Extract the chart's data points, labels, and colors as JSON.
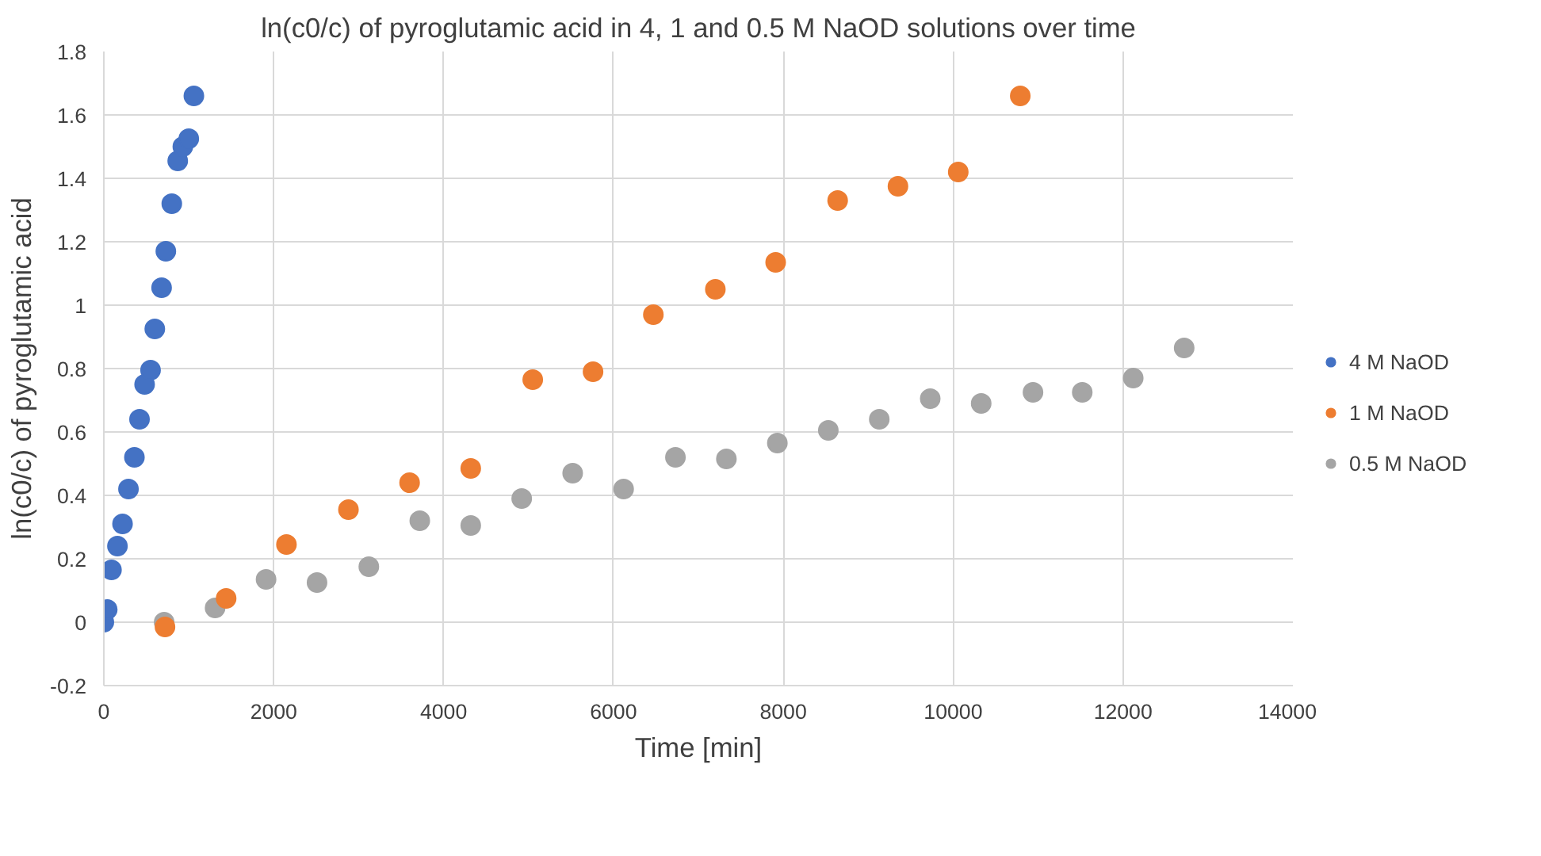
{
  "chart_data": {
    "type": "scatter",
    "title": "ln(c0/c) of pyroglutamic acid in 4, 1 and 0.5 M NaOD solutions over time",
    "xlabel": "Time [min]",
    "ylabel": "ln(c0/c) of pyroglutamic acid",
    "xlim": [
      0,
      14000
    ],
    "xticks": [
      0,
      2000,
      4000,
      6000,
      8000,
      10000,
      12000,
      14000
    ],
    "ylim": [
      -0.2,
      1.8
    ],
    "yticks": [
      -0.2,
      0,
      0.2,
      0.4,
      0.6,
      0.8,
      1,
      1.2,
      1.4,
      1.6,
      1.8
    ],
    "grid": true,
    "legend": "right",
    "marker": "circle",
    "series": [
      {
        "name": "4 M NaOD",
        "color": "#4472c4",
        "x": [
          0,
          40,
          90,
          160,
          220,
          290,
          360,
          420,
          480,
          550,
          600,
          680,
          730,
          800,
          870,
          930,
          1000,
          1060
        ],
        "values": [
          0,
          0.04,
          0.165,
          0.24,
          0.31,
          0.42,
          0.52,
          0.64,
          0.75,
          0.795,
          0.925,
          1.055,
          1.17,
          1.32,
          1.455,
          1.5,
          1.525,
          1.66
        ]
      },
      {
        "name": "1 M NaOD",
        "color": "#ed7d31",
        "x": [
          720,
          1440,
          2150,
          2880,
          3600,
          4320,
          5050,
          5760,
          6470,
          7200,
          7910,
          8640,
          9350,
          10060,
          10790
        ],
        "values": [
          -0.015,
          0.075,
          0.245,
          0.355,
          0.44,
          0.485,
          0.765,
          0.79,
          0.97,
          1.05,
          1.135,
          1.33,
          1.375,
          1.42,
          1.66
        ]
      },
      {
        "name": "0.5 M NaOD",
        "color": "#a5a5a5",
        "x": [
          710,
          1310,
          1910,
          2510,
          3120,
          3720,
          4320,
          4920,
          5520,
          6120,
          6730,
          7330,
          7930,
          8530,
          9130,
          9730,
          10330,
          10940,
          11520,
          12120,
          12720
        ],
        "values": [
          0,
          0.045,
          0.135,
          0.125,
          0.175,
          0.32,
          0.305,
          0.39,
          0.47,
          0.42,
          0.52,
          0.515,
          0.565,
          0.605,
          0.64,
          0.705,
          0.69,
          0.725,
          0.725,
          0.77,
          0.865
        ]
      }
    ]
  }
}
